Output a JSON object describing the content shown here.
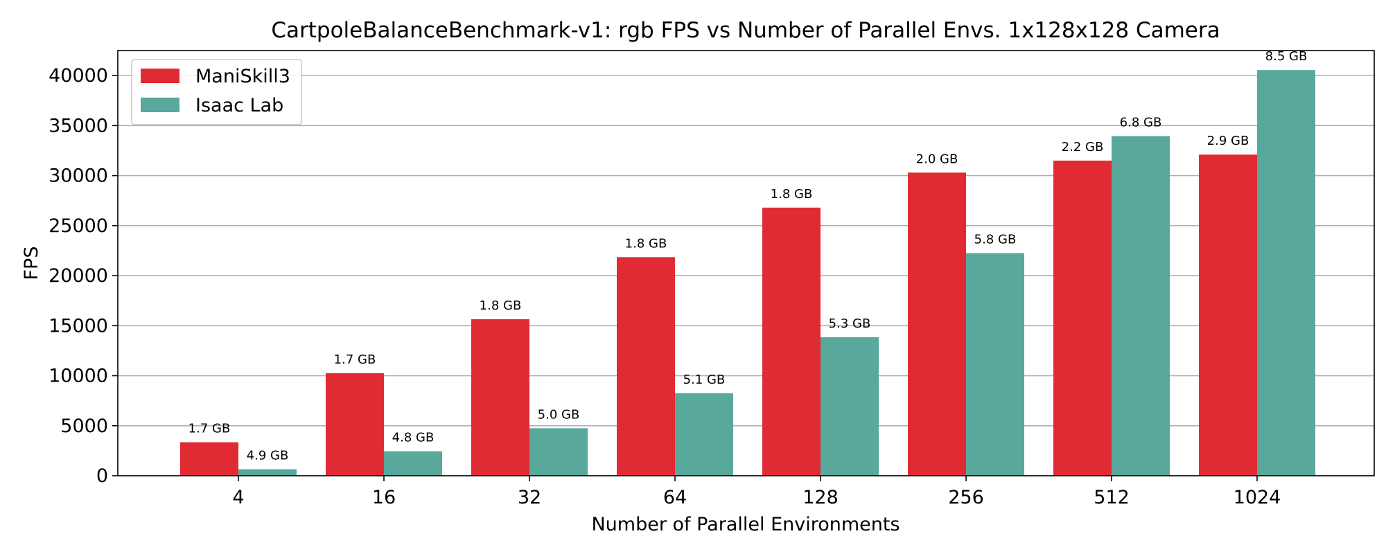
{
  "chart_data": {
    "type": "bar",
    "title": "CartpoleBalanceBenchmark-v1: rgb FPS vs Number of Parallel Envs. 1x128x128 Camera",
    "xlabel": "Number of Parallel Environments",
    "ylabel": "FPS",
    "categories": [
      "4",
      "16",
      "32",
      "64",
      "128",
      "256",
      "512",
      "1024"
    ],
    "ylim": [
      0,
      42500
    ],
    "yticks": [
      0,
      5000,
      10000,
      15000,
      20000,
      25000,
      30000,
      35000,
      40000
    ],
    "grid": "horizontal",
    "legend_position": "top-left",
    "series": [
      {
        "name": "ManiSkill3",
        "color": "#e02b35",
        "values": [
          3350,
          10250,
          15650,
          21850,
          26800,
          30300,
          31500,
          32100
        ],
        "labels": [
          "1.7 GB",
          "1.7 GB",
          "1.8 GB",
          "1.8 GB",
          "1.8 GB",
          "2.0 GB",
          "2.2 GB",
          "2.9 GB"
        ]
      },
      {
        "name": "Isaac Lab",
        "color": "#59a89c",
        "values": [
          650,
          2450,
          4750,
          8250,
          13850,
          22250,
          33950,
          40550
        ],
        "labels": [
          "4.9 GB",
          "4.8 GB",
          "5.0 GB",
          "5.1 GB",
          "5.3 GB",
          "5.8 GB",
          "6.8 GB",
          "8.5 GB"
        ]
      }
    ]
  }
}
